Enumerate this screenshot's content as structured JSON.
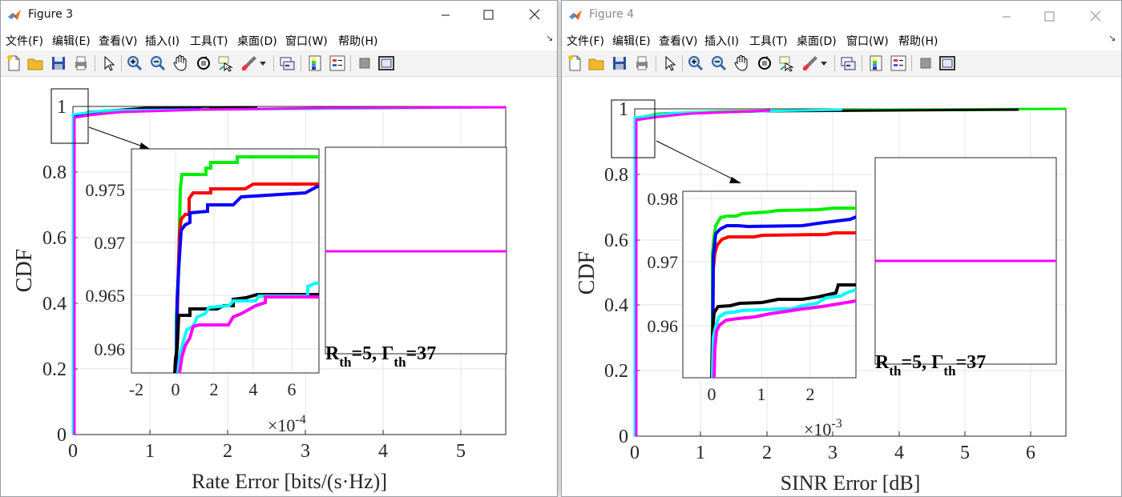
{
  "figure3": {
    "title": "Figure 3",
    "menu": [
      "文件(F)",
      "编辑(E)",
      "查看(V)",
      "插入(I)",
      "工具(T)",
      "桌面(D)",
      "窗口(W)",
      "帮助(H)"
    ],
    "menu_overflow": "↘",
    "xlabel": "Rate Error [bits/(s·Hz)]",
    "ylabel": "CDF",
    "xticks": [
      "0",
      "1",
      "2",
      "3",
      "4",
      "5"
    ],
    "yticks": [
      "0",
      "0.2",
      "0.4",
      "0.6",
      "0.8",
      "1"
    ],
    "inset": {
      "xticks": [
        "-2",
        "0",
        "2",
        "4",
        "6"
      ],
      "yticks": [
        "0.96",
        "0.965",
        "0.97",
        "0.975"
      ],
      "exp_base": "×10",
      "exp_power": "-4"
    },
    "legend_label": {
      "main": "R",
      "sub1": "th",
      "mid": "=5, Γ",
      "sub2": "th",
      "end": "=37"
    }
  },
  "figure4": {
    "title": "Figure 4",
    "menu": [
      "文件(F)",
      "编辑(E)",
      "查看(V)",
      "插入(I)",
      "工具(T)",
      "桌面(D)",
      "窗口(W)",
      "帮助(H)"
    ],
    "menu_overflow": "↘",
    "xlabel": "SINR Error [dB]",
    "ylabel": "CDF",
    "xticks": [
      "0",
      "1",
      "2",
      "3",
      "4",
      "5",
      "6"
    ],
    "yticks": [
      "0",
      "0.2",
      "0.4",
      "0.6",
      "0.8",
      "1"
    ],
    "inset": {
      "xticks": [
        "0",
        "1",
        "2"
      ],
      "yticks": [
        "0.96",
        "0.97",
        "0.98"
      ],
      "exp_base": "×10",
      "exp_power": "-3"
    },
    "legend_label": {
      "main": "R",
      "sub1": "th",
      "mid": "=5, Γ",
      "sub2": "th",
      "end": "=37"
    }
  },
  "colors": {
    "green": "#00ee00",
    "red": "#ff0000",
    "blue": "#0000ff",
    "black": "#000000",
    "cyan": "#00ffff",
    "magenta": "#ff00ff",
    "grid": "#e6e6e6"
  },
  "icons": [
    "new-file-icon",
    "open-folder-icon",
    "save-icon",
    "print-icon",
    "pointer-icon",
    "zoom-in-icon",
    "zoom-out-icon",
    "pan-hand-icon",
    "rotate-3d-icon",
    "data-cursor-icon",
    "brush-icon",
    "link-plot-icon",
    "colorbar-icon",
    "legend-icon",
    "hide-plot-tools-icon",
    "show-plot-tools-icon"
  ]
}
